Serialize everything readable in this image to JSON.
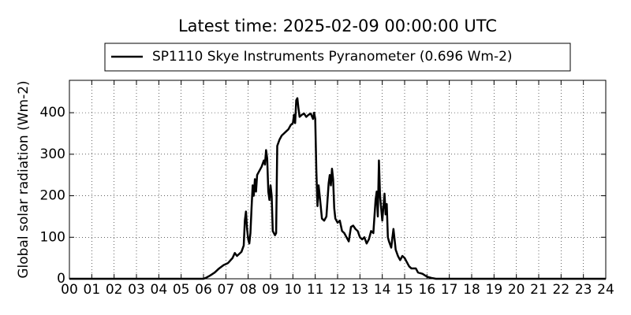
{
  "chart_data": {
    "type": "line",
    "title": "Latest time: 2025-02-09 00:00:00 UTC",
    "y_label": "Global solar radiation (Wm-2)",
    "legend": "upper center",
    "grid": true,
    "x": [
      0,
      6.0,
      6.1,
      6.3,
      6.5,
      6.7,
      6.9,
      7.1,
      7.3,
      7.4,
      7.5,
      7.6,
      7.7,
      7.8,
      7.85,
      7.9,
      7.95,
      8.0,
      8.05,
      8.1,
      8.15,
      8.2,
      8.25,
      8.3,
      8.35,
      8.4,
      8.5,
      8.6,
      8.7,
      8.75,
      8.8,
      8.85,
      8.9,
      8.95,
      9.0,
      9.05,
      9.1,
      9.2,
      9.25,
      9.3,
      9.4,
      9.5,
      9.6,
      9.7,
      9.8,
      9.9,
      10.0,
      10.05,
      10.1,
      10.15,
      10.2,
      10.25,
      10.3,
      10.4,
      10.5,
      10.6,
      10.7,
      10.8,
      10.9,
      10.95,
      11.0,
      11.05,
      11.1,
      11.15,
      11.2,
      11.3,
      11.4,
      11.5,
      11.6,
      11.65,
      11.7,
      11.75,
      11.8,
      11.85,
      11.9,
      12.0,
      12.1,
      12.2,
      12.3,
      12.4,
      12.5,
      12.6,
      12.7,
      12.8,
      12.9,
      13.0,
      13.1,
      13.2,
      13.3,
      13.4,
      13.5,
      13.6,
      13.7,
      13.75,
      13.8,
      13.85,
      13.9,
      14.0,
      14.1,
      14.15,
      14.2,
      14.25,
      14.3,
      14.4,
      14.5,
      14.55,
      14.6,
      14.7,
      14.8,
      14.9,
      15.0,
      15.1,
      15.2,
      15.3,
      15.5,
      15.6,
      15.8,
      16.0,
      16.2,
      16.4,
      24
    ],
    "series": [
      {
        "name": "SP1110 Skye Instruments Pyranometer (0.696 Wm-2)",
        "color": "#000000",
        "values": [
          0,
          0,
          2,
          8,
          15,
          25,
          33,
          38,
          50,
          62,
          55,
          60,
          65,
          80,
          140,
          162,
          120,
          95,
          85,
          110,
          170,
          225,
          200,
          240,
          210,
          250,
          260,
          270,
          285,
          275,
          310,
          290,
          210,
          190,
          225,
          200,
          115,
          105,
          110,
          320,
          335,
          345,
          350,
          355,
          360,
          370,
          375,
          395,
          375,
          430,
          435,
          410,
          390,
          395,
          398,
          390,
          395,
          398,
          385,
          400,
          385,
          260,
          175,
          225,
          200,
          145,
          140,
          150,
          230,
          250,
          225,
          265,
          240,
          170,
          145,
          135,
          140,
          115,
          110,
          100,
          90,
          125,
          128,
          120,
          115,
          100,
          95,
          100,
          85,
          95,
          115,
          110,
          190,
          210,
          150,
          285,
          200,
          140,
          205,
          155,
          180,
          100,
          90,
          75,
          120,
          95,
          70,
          55,
          45,
          55,
          50,
          40,
          30,
          25,
          25,
          15,
          12,
          5,
          2,
          0,
          0
        ]
      }
    ],
    "xlim": [
      0,
      24
    ],
    "xticks": [
      {
        "value": 0,
        "label": "00"
      },
      {
        "value": 1,
        "label": "01"
      },
      {
        "value": 2,
        "label": "02"
      },
      {
        "value": 3,
        "label": "03"
      },
      {
        "value": 4,
        "label": "04"
      },
      {
        "value": 5,
        "label": "05"
      },
      {
        "value": 6,
        "label": "06"
      },
      {
        "value": 7,
        "label": "07"
      },
      {
        "value": 8,
        "label": "08"
      },
      {
        "value": 9,
        "label": "09"
      },
      {
        "value": 10,
        "label": "10"
      },
      {
        "value": 11,
        "label": "11"
      },
      {
        "value": 12,
        "label": "12"
      },
      {
        "value": 13,
        "label": "13"
      },
      {
        "value": 14,
        "label": "14"
      },
      {
        "value": 15,
        "label": "15"
      },
      {
        "value": 16,
        "label": "16"
      },
      {
        "value": 17,
        "label": "17"
      },
      {
        "value": 18,
        "label": "18"
      },
      {
        "value": 19,
        "label": "19"
      },
      {
        "value": 20,
        "label": "20"
      },
      {
        "value": 21,
        "label": "21"
      },
      {
        "value": 22,
        "label": "22"
      },
      {
        "value": 23,
        "label": "23"
      },
      {
        "value": 24,
        "label": "24"
      }
    ],
    "ylim": [
      0,
      478
    ],
    "yticks": [
      0,
      100,
      200,
      300,
      400
    ]
  }
}
